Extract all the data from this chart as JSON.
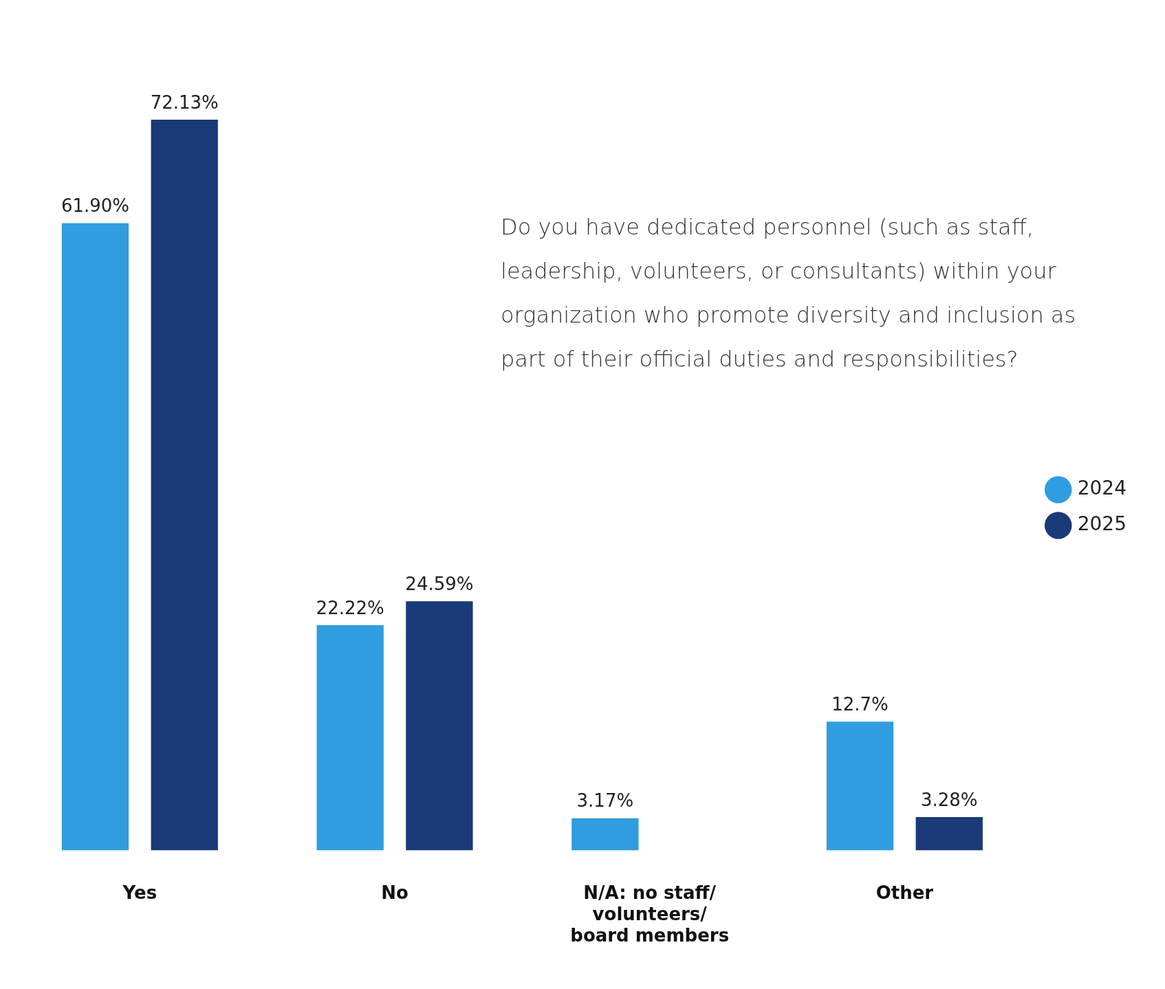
{
  "chart_data": {
    "type": "bar",
    "title": "Do you have dedicated personnel (such as staff, leadership, volunteers, or consultants) within your organization who promote diversity and inclusion as part of their official duties and responsibilities?",
    "categories": [
      "Yes",
      "No",
      "N/A: no staff/ volunteers/ board members",
      "Other"
    ],
    "series": [
      {
        "name": "2024",
        "color": "#2f9de0",
        "values": [
          61.9,
          22.22,
          3.17,
          12.7
        ],
        "value_labels": [
          "61.90%",
          "22.22%",
          "3.17%",
          "12.7%"
        ]
      },
      {
        "name": "2025",
        "color": "#1a3a78",
        "values": [
          72.13,
          24.59,
          null,
          3.28
        ],
        "value_labels": [
          "72.13%",
          "24.59%",
          null,
          "3.28%"
        ]
      }
    ],
    "legend": "right",
    "tick_labels": "x",
    "grid": false
  }
}
